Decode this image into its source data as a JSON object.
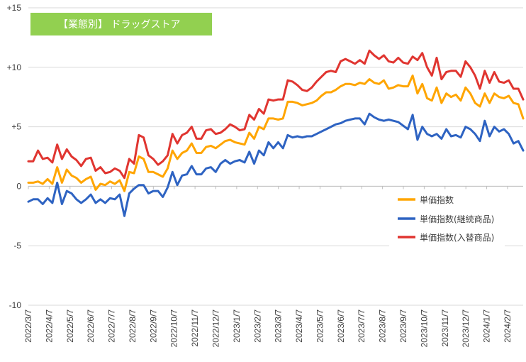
{
  "chart_data": {
    "type": "line",
    "title": "【業態別】 ドラッグストア",
    "title_bg_color": "#92d050",
    "ylim": [
      -10,
      15
    ],
    "yticks": [
      {
        "value": 15,
        "label": "+15"
      },
      {
        "value": 10,
        "label": "+10"
      },
      {
        "value": 5,
        "label": "+5"
      },
      {
        "value": 0,
        "label": "0"
      },
      {
        "value": -5,
        "label": "-5"
      },
      {
        "value": -10,
        "label": "-10"
      }
    ],
    "grid": "horizontal",
    "x_start": "2022/3/7",
    "x_step": "weekly",
    "xtick_labels": [
      "2022/3/7",
      "2022/4/7",
      "2022/5/7",
      "2022/6/7",
      "2022/7/7",
      "2022/8/7",
      "2022/9/7",
      "2022/10/7",
      "2022/11/7",
      "2022/12/7",
      "2023/1/7",
      "2023/2/7",
      "2023/3/7",
      "2023/4/7",
      "2023/5/7",
      "2023/6/7",
      "2023/7/7",
      "2023/8/7",
      "2023/9/7",
      "2023/10/7",
      "2023/11/7",
      "2023/12/7",
      "2024/1/7",
      "2024/2/7"
    ],
    "legend_position": "right",
    "series": [
      {
        "name": "単価指数",
        "color": "#ffa500",
        "values": [
          0.3,
          0.3,
          0.4,
          0.2,
          0.6,
          0.2,
          1.6,
          0.3,
          1.4,
          0.9,
          0.7,
          0.3,
          0.6,
          0.8,
          -0.3,
          0.2,
          0.1,
          0.4,
          0.2,
          0.5,
          -0.4,
          1.2,
          1.1,
          2.5,
          2.3,
          1.2,
          1.2,
          1.0,
          0.8,
          1.5,
          3.0,
          2.3,
          2.8,
          3.0,
          3.6,
          2.8,
          2.8,
          3.3,
          3.4,
          3.2,
          3.5,
          3.8,
          3.9,
          3.7,
          3.6,
          3.5,
          4.5,
          4.0,
          5.0,
          4.8,
          5.7,
          5.7,
          5.6,
          5.7,
          7.1,
          7.1,
          7.0,
          6.8,
          6.9,
          7.0,
          7.2,
          7.6,
          7.9,
          7.9,
          8.1,
          8.4,
          8.6,
          8.6,
          8.5,
          8.7,
          8.6,
          9.0,
          8.7,
          8.6,
          8.9,
          8.2,
          8.3,
          8.5,
          8.4,
          8.4,
          9.3,
          7.8,
          8.6,
          7.4,
          7.2,
          8.3,
          7.0,
          7.8,
          7.5,
          7.7,
          7.2,
          8.3,
          7.8,
          7.0,
          6.7,
          7.8,
          7.0,
          7.8,
          7.5,
          7.4,
          7.6,
          7.0,
          6.9,
          5.7
        ]
      },
      {
        "name": "単価指数(継続商品)",
        "color": "#2e63c2",
        "values": [
          -1.3,
          -1.1,
          -1.1,
          -1.5,
          -1.0,
          -1.4,
          0.3,
          -1.5,
          -0.4,
          -0.6,
          -1.1,
          -1.4,
          -1.1,
          -0.7,
          -1.4,
          -1.1,
          -1.4,
          -1.0,
          -1.1,
          -0.7,
          -2.5,
          -0.6,
          -0.2,
          0.1,
          0.1,
          -0.6,
          -0.4,
          -0.4,
          -0.9,
          -0.1,
          1.2,
          0.1,
          0.9,
          1.0,
          1.7,
          1.0,
          1.0,
          1.5,
          1.6,
          1.2,
          1.9,
          2.2,
          1.9,
          2.1,
          2.2,
          2.0,
          2.9,
          1.9,
          3.0,
          2.6,
          3.7,
          3.2,
          3.7,
          3.2,
          4.3,
          4.1,
          4.2,
          4.1,
          4.2,
          4.2,
          4.4,
          4.6,
          4.8,
          5.0,
          5.2,
          5.3,
          5.5,
          5.6,
          5.7,
          5.7,
          5.2,
          6.1,
          5.8,
          5.6,
          5.5,
          5.6,
          5.5,
          5.4,
          5.1,
          4.8,
          6.0,
          3.9,
          5.0,
          4.4,
          4.2,
          4.4,
          4.0,
          4.8,
          4.2,
          4.3,
          4.1,
          5.0,
          4.8,
          4.4,
          3.8,
          5.5,
          4.2,
          5.0,
          4.6,
          4.8,
          4.4,
          3.6,
          3.8,
          3.0
        ]
      },
      {
        "name": "単価指数(入替商品)",
        "color": "#e03530",
        "values": [
          2.1,
          2.1,
          3.0,
          2.3,
          2.4,
          2.0,
          3.5,
          2.3,
          3.1,
          2.5,
          2.2,
          1.7,
          2.3,
          2.4,
          1.3,
          1.6,
          1.1,
          1.2,
          1.5,
          1.3,
          0.7,
          2.3,
          1.9,
          4.3,
          4.1,
          2.6,
          2.3,
          1.8,
          2.1,
          2.6,
          4.4,
          3.6,
          4.3,
          4.5,
          5.0,
          4.0,
          4.0,
          4.7,
          4.8,
          4.4,
          4.5,
          4.8,
          5.2,
          5.0,
          4.7,
          4.8,
          6.0,
          5.6,
          6.5,
          6.1,
          7.3,
          7.2,
          7.3,
          7.3,
          8.9,
          8.8,
          8.5,
          8.1,
          8.0,
          8.3,
          8.8,
          9.2,
          9.6,
          9.7,
          9.6,
          10.5,
          10.7,
          10.5,
          10.3,
          10.6,
          10.3,
          11.4,
          11.0,
          10.7,
          11.0,
          10.5,
          10.4,
          10.8,
          10.4,
          10.3,
          10.9,
          10.6,
          11.2,
          10.0,
          9.3,
          10.8,
          9.0,
          9.6,
          9.7,
          9.7,
          9.2,
          10.5,
          10.0,
          9.3,
          8.2,
          9.7,
          8.7,
          9.6,
          8.8,
          8.7,
          8.9,
          8.2,
          8.2,
          7.3
        ]
      }
    ]
  }
}
